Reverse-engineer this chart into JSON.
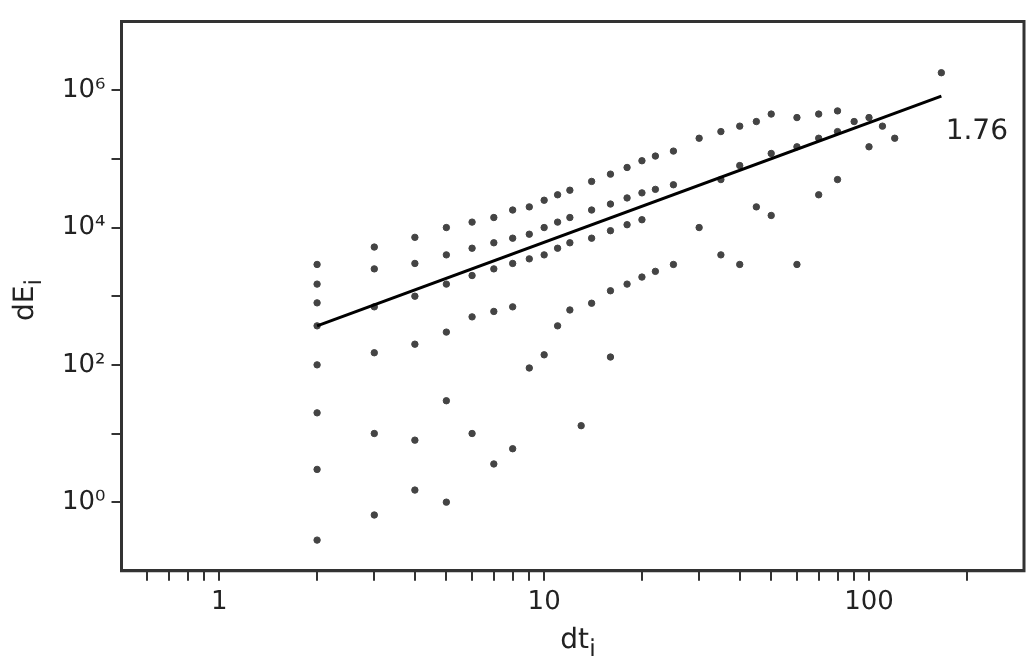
{
  "chart_data": {
    "type": "scatter",
    "xlabel": "dt$_{i}$",
    "ylabel": "dE$_{i}$",
    "log": "xy",
    "xlim": [
      0.5,
      300
    ],
    "ylim": [
      0.1,
      10000000
    ],
    "xticks": [
      {
        "value": 0.6,
        "label": null
      },
      {
        "value": 0.7,
        "label": null
      },
      {
        "value": 0.8,
        "label": null
      },
      {
        "value": 0.9,
        "label": null
      },
      1,
      {
        "value": 2,
        "label": null
      },
      {
        "value": 3,
        "label": null
      },
      {
        "value": 4,
        "label": null
      },
      {
        "value": 5,
        "label": null
      },
      {
        "value": 6,
        "label": null
      },
      {
        "value": 7,
        "label": null
      },
      {
        "value": 8,
        "label": null
      },
      {
        "value": 9,
        "label": null
      },
      10,
      {
        "value": 20,
        "label": null
      },
      {
        "value": 30,
        "label": null
      },
      {
        "value": 40,
        "label": null
      },
      {
        "value": 50,
        "label": null
      },
      {
        "value": 60,
        "label": null
      },
      {
        "value": 70,
        "label": null
      },
      {
        "value": 80,
        "label": null
      },
      {
        "value": 90,
        "label": null
      },
      100,
      {
        "value": 200,
        "label": null
      }
    ],
    "yticks": [
      {
        "value": 1,
        "label": "10⁰"
      },
      {
        "value": 10,
        "label": null
      },
      {
        "value": 100,
        "label": "10²"
      },
      {
        "value": 1000,
        "label": null
      },
      {
        "value": 10000,
        "label": "10⁴"
      },
      {
        "value": 100000,
        "label": null
      },
      {
        "value": 1000000,
        "label": "10⁶"
      }
    ],
    "annotations": [
      "1.76"
    ],
    "series": [
      {
        "type": "scatter",
        "marker": "circle",
        "color": "#444444",
        "x": [
          2,
          2,
          2,
          2,
          2,
          2,
          2,
          2,
          3,
          3,
          3,
          3,
          3,
          3,
          4,
          4,
          4,
          4,
          4,
          4,
          5,
          5,
          5,
          5,
          5,
          5,
          6,
          6,
          6,
          6,
          6,
          7,
          7,
          7,
          7,
          7,
          8,
          8,
          8,
          8,
          8,
          9,
          9,
          9,
          9,
          10,
          10,
          10,
          10,
          11,
          11,
          11,
          11,
          12,
          12,
          12,
          12,
          14,
          14,
          14,
          14,
          16,
          16,
          16,
          16,
          18,
          18,
          18,
          18,
          20,
          20,
          20,
          20,
          22,
          22,
          22,
          25,
          25,
          25,
          30,
          30,
          35,
          35,
          35,
          40,
          40,
          40,
          45,
          45,
          50,
          50,
          50,
          60,
          60,
          60,
          70,
          70,
          70,
          80,
          80,
          80,
          90,
          100,
          100,
          110,
          120,
          167,
          16,
          13
        ],
        "values": [
          2900,
          1500,
          800,
          370,
          100,
          20,
          3,
          0.28,
          5200,
          2500,
          700,
          150,
          10,
          0.65,
          7200,
          3000,
          1000,
          200,
          8,
          1.5,
          10000,
          4000,
          1500,
          300,
          30,
          1,
          12000,
          5000,
          2000,
          500,
          10,
          14000,
          6000,
          2500,
          600,
          3.6,
          18000,
          7000,
          3000,
          700,
          6,
          20000,
          8000,
          3500,
          90,
          25000,
          10000,
          4000,
          140,
          30000,
          12000,
          5000,
          370,
          35000,
          14000,
          6000,
          630,
          47000,
          18000,
          7000,
          790,
          60000,
          22000,
          9000,
          1200,
          75000,
          27000,
          11000,
          1500,
          94000,
          32000,
          13000,
          1900,
          110000,
          36000,
          2300,
          130000,
          42000,
          2900,
          200000,
          10000,
          250000,
          50000,
          4000,
          300000,
          80000,
          2900,
          350000,
          20000,
          450000,
          120000,
          15000,
          400000,
          150000,
          2900,
          450000,
          200000,
          30000,
          500000,
          250000,
          50000,
          350000,
          400000,
          150000,
          300000,
          200000,
          1800000,
          130,
          13
        ]
      },
      {
        "type": "line",
        "marker": "none",
        "color": "#000000",
        "x": [
          2,
          167
        ],
        "values": [
          370,
          820000
        ]
      }
    ]
  }
}
